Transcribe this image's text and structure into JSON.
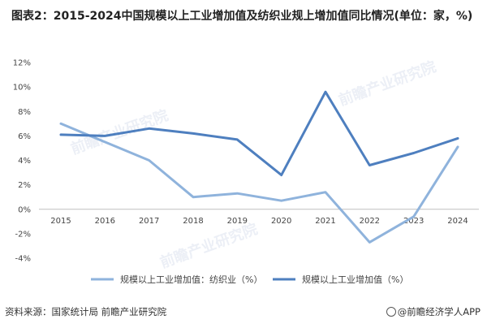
{
  "title": "图表2：2015-2024中国规模以上工业增加值及纺织业规上增加值同比情况(单位：家，%)",
  "source": "资料来源：国家统计局 前瞻产业研究院",
  "brand": "@前瞻经济学人APP",
  "watermark": "前瞻产业研究院",
  "colors": {
    "series1": "#8fb3dc",
    "series2": "#4e7fbf",
    "axis": "#bfbfbf"
  },
  "chart_data": {
    "type": "line",
    "x": [
      "2015",
      "2016",
      "2017",
      "2018",
      "2019",
      "2020",
      "2021",
      "2022",
      "2023",
      "2024"
    ],
    "ylim": [
      -4,
      12
    ],
    "yticks": [
      "12%",
      "10%",
      "8%",
      "6%",
      "4%",
      "2%",
      "0%",
      "-2%",
      "-4%"
    ],
    "ytick_values": [
      12,
      10,
      8,
      6,
      4,
      2,
      0,
      -2,
      -4
    ],
    "legend_position": "bottom",
    "series": [
      {
        "name": "规模以上工业增加值：纺织业（%）",
        "values": [
          7.0,
          5.5,
          4.0,
          1.0,
          1.3,
          0.7,
          1.4,
          -2.7,
          -0.6,
          5.1
        ]
      },
      {
        "name": "规模以上工业增加值（%）",
        "values": [
          6.1,
          6.0,
          6.6,
          6.2,
          5.7,
          2.8,
          9.6,
          3.6,
          4.6,
          5.8
        ]
      }
    ]
  }
}
